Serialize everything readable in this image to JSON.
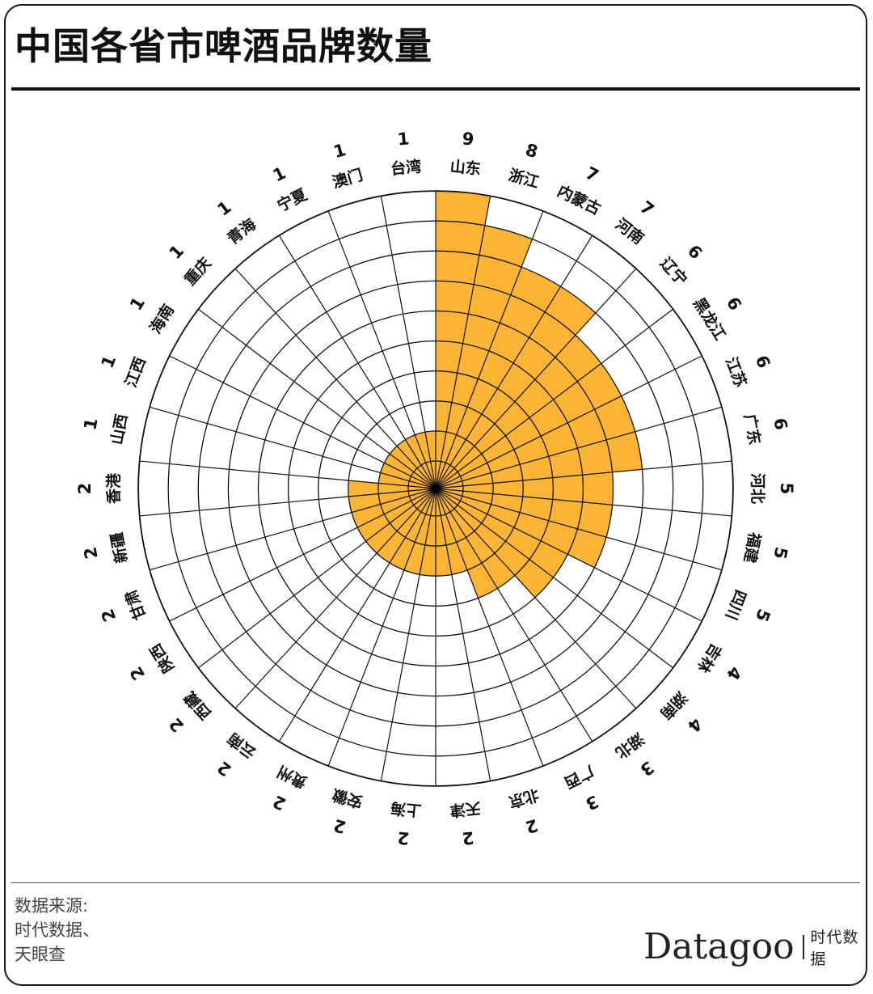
{
  "title": "中国各省市啤酒品牌数量",
  "source": [
    "数据来源:",
    "时代数据、",
    "天眼查"
  ],
  "brand": {
    "name": "Datagoo",
    "cn": "时代数据"
  },
  "colors": {
    "fill": "#FBB433",
    "grid": "#111111"
  },
  "chart_data": {
    "type": "radial_bar",
    "rmax": 9,
    "rings": 9,
    "categories": [
      "山东",
      "浙江",
      "内蒙古",
      "河南",
      "辽宁",
      "黑龙江",
      "江苏",
      "广东",
      "河北",
      "福建",
      "四川",
      "吉林",
      "湖南",
      "湖北",
      "广西",
      "北京",
      "天津",
      "上海",
      "安徽",
      "贵州",
      "云南",
      "西藏",
      "陕西",
      "甘肃",
      "新疆",
      "香港",
      "山西",
      "江西",
      "海南",
      "重庆",
      "青海",
      "宁夏",
      "澳门",
      "台湾"
    ],
    "values": [
      9,
      8,
      7,
      7,
      6,
      6,
      6,
      6,
      5,
      5,
      5,
      4,
      4,
      3,
      3,
      2,
      2,
      2,
      2,
      2,
      2,
      2,
      2,
      2,
      2,
      2,
      1,
      1,
      1,
      1,
      1,
      1,
      1,
      1
    ]
  }
}
